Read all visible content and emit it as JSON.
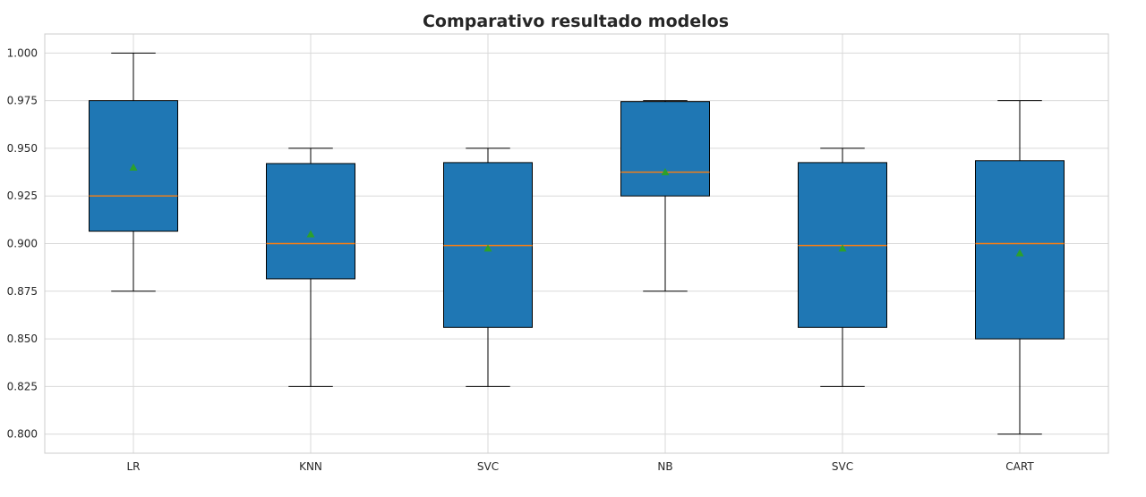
{
  "chart_data": {
    "type": "box",
    "title": "Comparativo resultado modelos",
    "xlabel": "",
    "ylabel": "",
    "categories": [
      "LR",
      "KNN",
      "SVC",
      "NB",
      "SVC",
      "CART"
    ],
    "ylim": [
      0.79,
      1.01
    ],
    "yticks": [
      0.8,
      0.825,
      0.85,
      0.875,
      0.9,
      0.925,
      0.95,
      0.975,
      1.0
    ],
    "ytick_labels": [
      "0.800",
      "0.825",
      "0.850",
      "0.875",
      "0.900",
      "0.925",
      "0.950",
      "0.975",
      "1.000"
    ],
    "grid": true,
    "boxes": [
      {
        "whislo": 0.875,
        "q1": 0.9065,
        "med": 0.925,
        "q3": 0.975,
        "whishi": 1.0,
        "mean": 0.94
      },
      {
        "whislo": 0.825,
        "q1": 0.8815,
        "med": 0.9,
        "q3": 0.942,
        "whishi": 0.95,
        "mean": 0.905
      },
      {
        "whislo": 0.825,
        "q1": 0.856,
        "med": 0.899,
        "q3": 0.9425,
        "whishi": 0.95,
        "mean": 0.8975
      },
      {
        "whislo": 0.875,
        "q1": 0.925,
        "med": 0.9375,
        "q3": 0.9745,
        "whishi": 0.975,
        "mean": 0.9375
      },
      {
        "whislo": 0.825,
        "q1": 0.856,
        "med": 0.899,
        "q3": 0.9425,
        "whishi": 0.95,
        "mean": 0.8975
      },
      {
        "whislo": 0.8,
        "q1": 0.85,
        "med": 0.9,
        "q3": 0.9435,
        "whishi": 0.975,
        "mean": 0.895
      }
    ],
    "colors": {
      "box_fill": "#1f77b4",
      "median": "#ff7f0e",
      "mean_marker": "#2ca02c",
      "grid": "#d9d9d9",
      "text": "#262626"
    }
  }
}
